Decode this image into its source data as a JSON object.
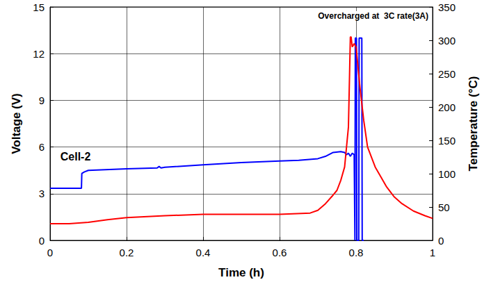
{
  "chart_data": {
    "type": "line",
    "x_label": "Time (h)",
    "y_label": "Voltage (V)",
    "y2_label": "Temperature (°C)",
    "annotations": [
      "Cell-2",
      "Overcharged at  3C rate(3A)"
    ],
    "xlim": [
      0,
      1
    ],
    "xticks": [
      0,
      0.2,
      0.4,
      0.6,
      0.8,
      1
    ],
    "ylim": [
      0,
      15
    ],
    "yticks": [
      0,
      3,
      6,
      9,
      12,
      15
    ],
    "y2lim": [
      0,
      350
    ],
    "y2ticks": [
      0,
      50,
      100,
      150,
      200,
      250,
      300,
      350
    ],
    "grid": true,
    "series": [
      {
        "name": "Voltage",
        "color": "#0000ff",
        "axis": "y",
        "x": [
          0,
          0.04,
          0.082,
          0.083,
          0.09,
          0.1,
          0.2,
          0.28,
          0.285,
          0.29,
          0.3,
          0.4,
          0.5,
          0.6,
          0.65,
          0.7,
          0.72,
          0.74,
          0.76,
          0.77,
          0.775,
          0.78,
          0.785,
          0.79,
          0.795,
          0.797,
          0.798,
          0.801,
          0.802,
          0.807,
          0.808,
          0.815,
          0.816,
          0.82
        ],
        "values": [
          3.35,
          3.35,
          3.35,
          4.3,
          4.4,
          4.5,
          4.6,
          4.65,
          4.75,
          4.65,
          4.7,
          4.85,
          5.0,
          5.1,
          5.15,
          5.25,
          5.4,
          5.65,
          5.7,
          5.65,
          5.5,
          5.6,
          5.4,
          5.6,
          5.5,
          0,
          13,
          13,
          0,
          0,
          13,
          13,
          0,
          0
        ]
      },
      {
        "name": "Temperature",
        "color": "#ff0000",
        "axis": "y2",
        "x": [
          0,
          0.05,
          0.1,
          0.15,
          0.2,
          0.3,
          0.4,
          0.5,
          0.6,
          0.68,
          0.7,
          0.72,
          0.74,
          0.75,
          0.76,
          0.77,
          0.775,
          0.78,
          0.783,
          0.785,
          0.787,
          0.79,
          0.795,
          0.8,
          0.805,
          0.81,
          0.82,
          0.83,
          0.85,
          0.88,
          0.9,
          0.92,
          0.95,
          0.98,
          1
        ],
        "values": [
          25,
          25,
          27,
          31,
          34,
          37,
          39,
          39,
          39,
          41,
          45,
          55,
          68,
          75,
          90,
          110,
          140,
          170,
          250,
          305,
          305,
          290,
          295,
          290,
          260,
          230,
          180,
          140,
          110,
          80,
          65,
          55,
          44,
          37,
          33
        ]
      }
    ]
  }
}
